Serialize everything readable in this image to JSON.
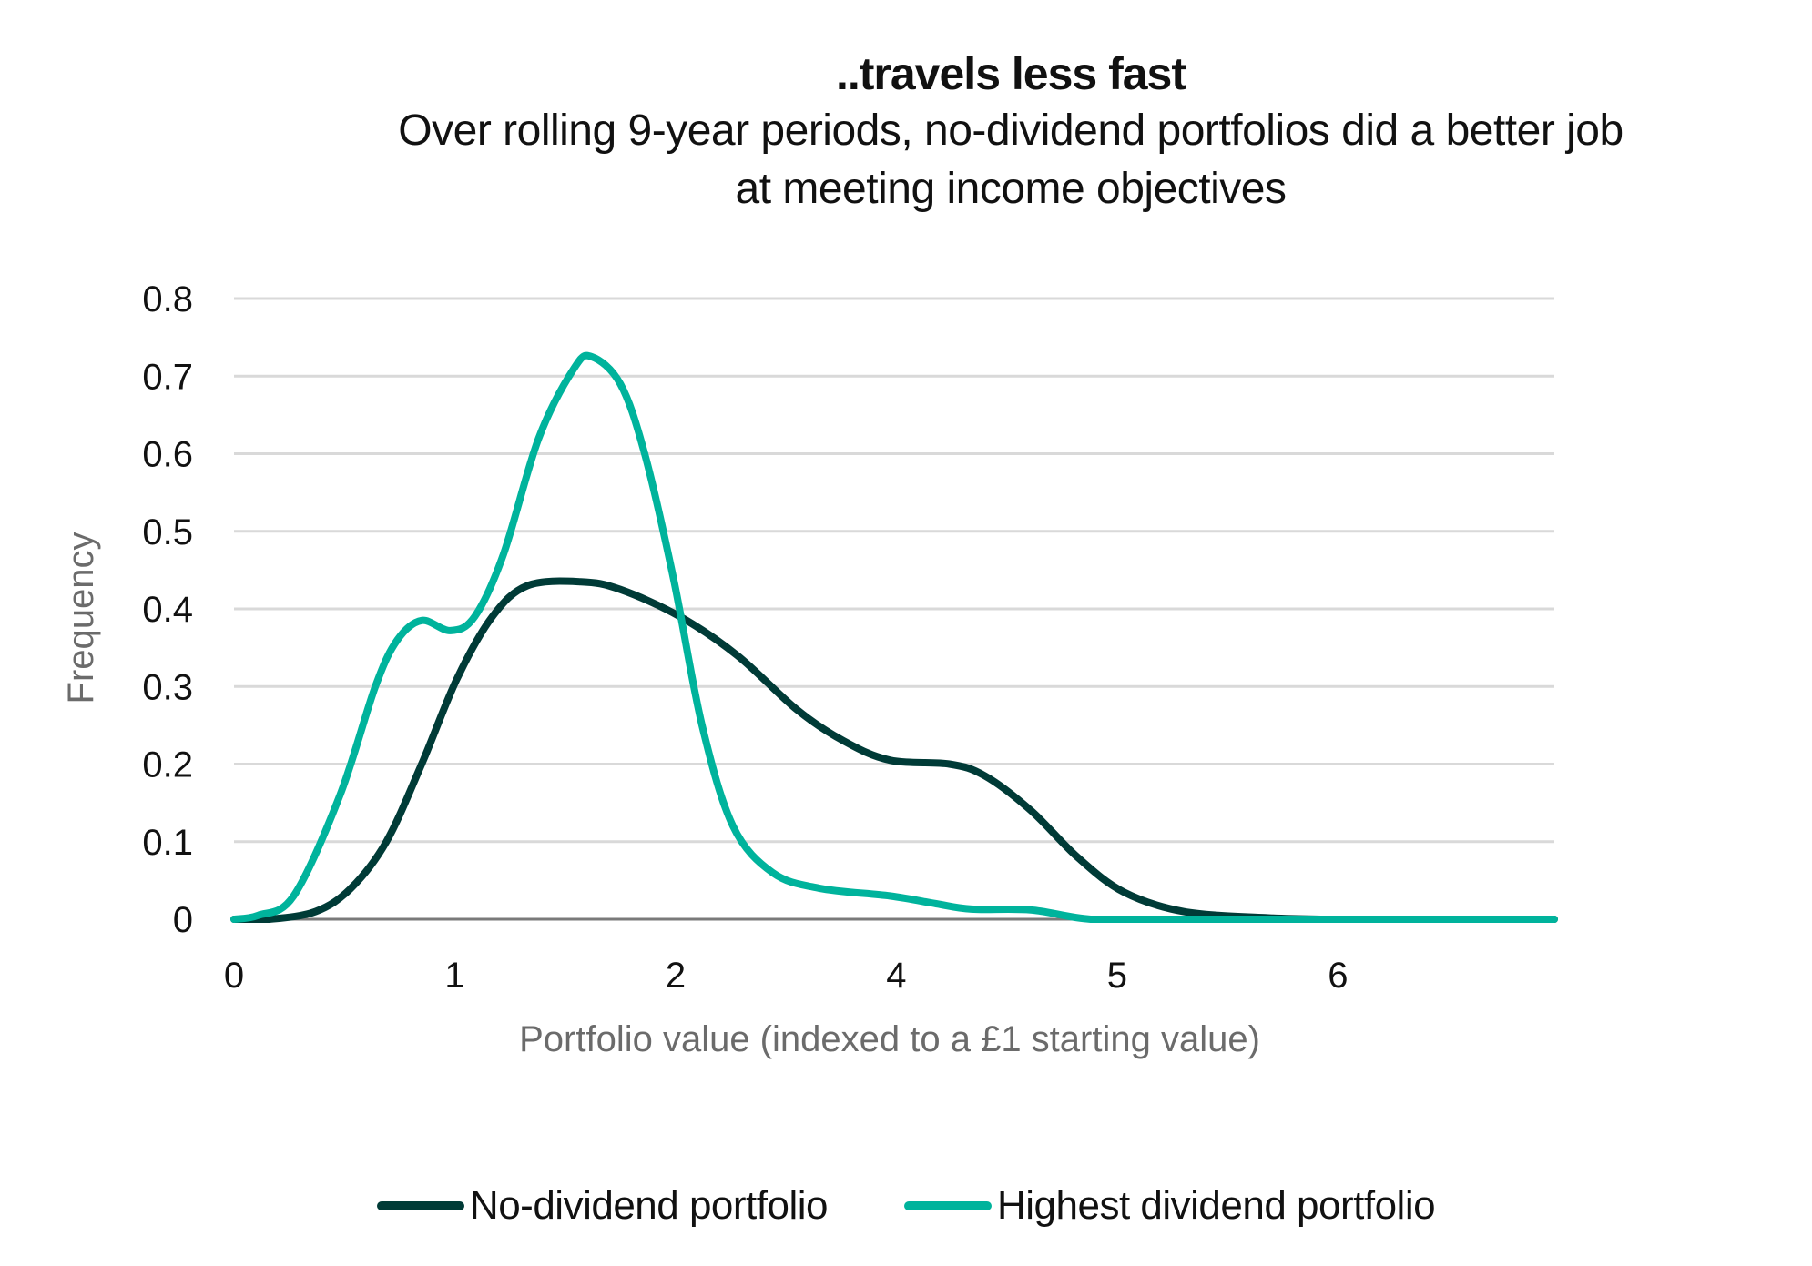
{
  "chart_data": {
    "type": "line",
    "title": "..travels less fast",
    "subtitle": "Over rolling 9-year periods, no-dividend portfolios did a better job at meeting income objectives",
    "subtitle_lines": [
      "Over rolling 9-year periods, no-dividend portfolios did a better job",
      "at meeting income objectives"
    ],
    "xlabel": "Portfolio value (indexed to a £1 starting value)",
    "ylabel": "Frequency",
    "x_tick_labels": [
      "0",
      "1",
      "2",
      "4",
      "5",
      "6"
    ],
    "x_tick_positions": [
      0,
      1,
      2,
      3,
      4,
      5
    ],
    "xlim": [
      0,
      5.98
    ],
    "y_ticks": [
      0,
      0.1,
      0.2,
      0.3,
      0.4,
      0.5,
      0.6,
      0.7,
      0.8
    ],
    "y_tick_labels": [
      "0",
      "0.1",
      "0.2",
      "0.3",
      "0.4",
      "0.5",
      "0.6",
      "0.7",
      "0.8"
    ],
    "ylim": [
      0,
      0.8
    ],
    "grid": true,
    "legend_position": "bottom",
    "series": [
      {
        "name": "No-dividend portfolio",
        "color": "#003b37",
        "x": [
          0,
          0.16,
          0.37,
          0.53,
          0.69,
          0.85,
          1.01,
          1.17,
          1.33,
          1.57,
          1.75,
          2.02,
          2.28,
          2.55,
          2.76,
          2.97,
          3.24,
          3.4,
          3.61,
          3.82,
          4.03,
          4.3,
          4.67,
          4.94,
          5.2,
          5.98
        ],
        "values": [
          0,
          0.0,
          0.01,
          0.04,
          0.1,
          0.2,
          0.31,
          0.39,
          0.43,
          0.435,
          0.425,
          0.39,
          0.34,
          0.27,
          0.23,
          0.205,
          0.2,
          0.185,
          0.14,
          0.08,
          0.035,
          0.01,
          0.002,
          0,
          0,
          0
        ]
      },
      {
        "name": "Highest dividend portfolio",
        "color": "#00b39c",
        "x": [
          0,
          0.11,
          0.27,
          0.48,
          0.64,
          0.74,
          0.85,
          0.98,
          1.09,
          1.22,
          1.38,
          1.54,
          1.62,
          1.75,
          1.86,
          1.99,
          2.12,
          2.26,
          2.44,
          2.65,
          2.97,
          3.18,
          3.34,
          3.61,
          3.88,
          4.25,
          5.98
        ],
        "values": [
          0,
          0.005,
          0.03,
          0.16,
          0.3,
          0.36,
          0.385,
          0.372,
          0.39,
          0.47,
          0.62,
          0.71,
          0.725,
          0.69,
          0.6,
          0.44,
          0.25,
          0.12,
          0.06,
          0.04,
          0.03,
          0.02,
          0.013,
          0.012,
          0.0,
          0,
          0
        ]
      }
    ]
  }
}
